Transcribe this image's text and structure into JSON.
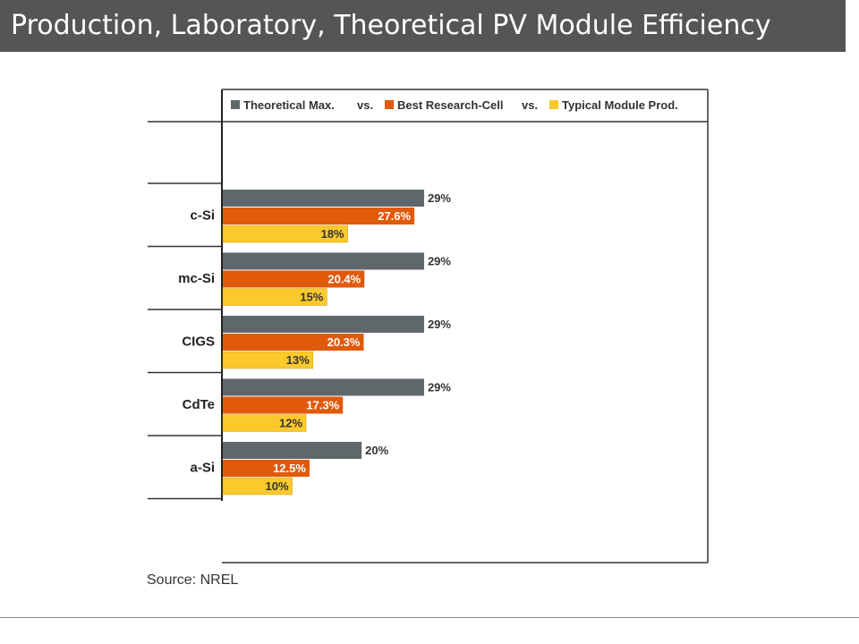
{
  "slide": {
    "title": "Production, Laboratory, Theoretical PV Module Efficiency",
    "source": "Source: NREL"
  },
  "chart_data": {
    "type": "bar",
    "orientation": "horizontal",
    "categories": [
      "c-Si",
      "mc-Si",
      "CIGS",
      "CdTe",
      "a-Si"
    ],
    "series": [
      {
        "name": "Theoretical Max.",
        "values": [
          29,
          29,
          29,
          29,
          20
        ],
        "labels": [
          "29%",
          "29%",
          "29%",
          "29%",
          "20%"
        ],
        "color": "#5f676b"
      },
      {
        "name": "Best Research-Cell",
        "values": [
          27.6,
          20.4,
          20.3,
          17.3,
          12.5
        ],
        "labels": [
          "27.6%",
          "20.4%",
          "20.3%",
          "17.3%",
          "12.5%"
        ],
        "color": "#e05a0c"
      },
      {
        "name": "Typical Module Prod.",
        "values": [
          18,
          15,
          13,
          12,
          10
        ],
        "labels": [
          "18%",
          "15%",
          "13%",
          "12%",
          "10%"
        ],
        "color": "#fbc92c"
      }
    ],
    "legend_separators": [
      "vs.",
      "vs."
    ],
    "legend_position": "top",
    "xlim": [
      0,
      70
    ],
    "grid": false
  }
}
